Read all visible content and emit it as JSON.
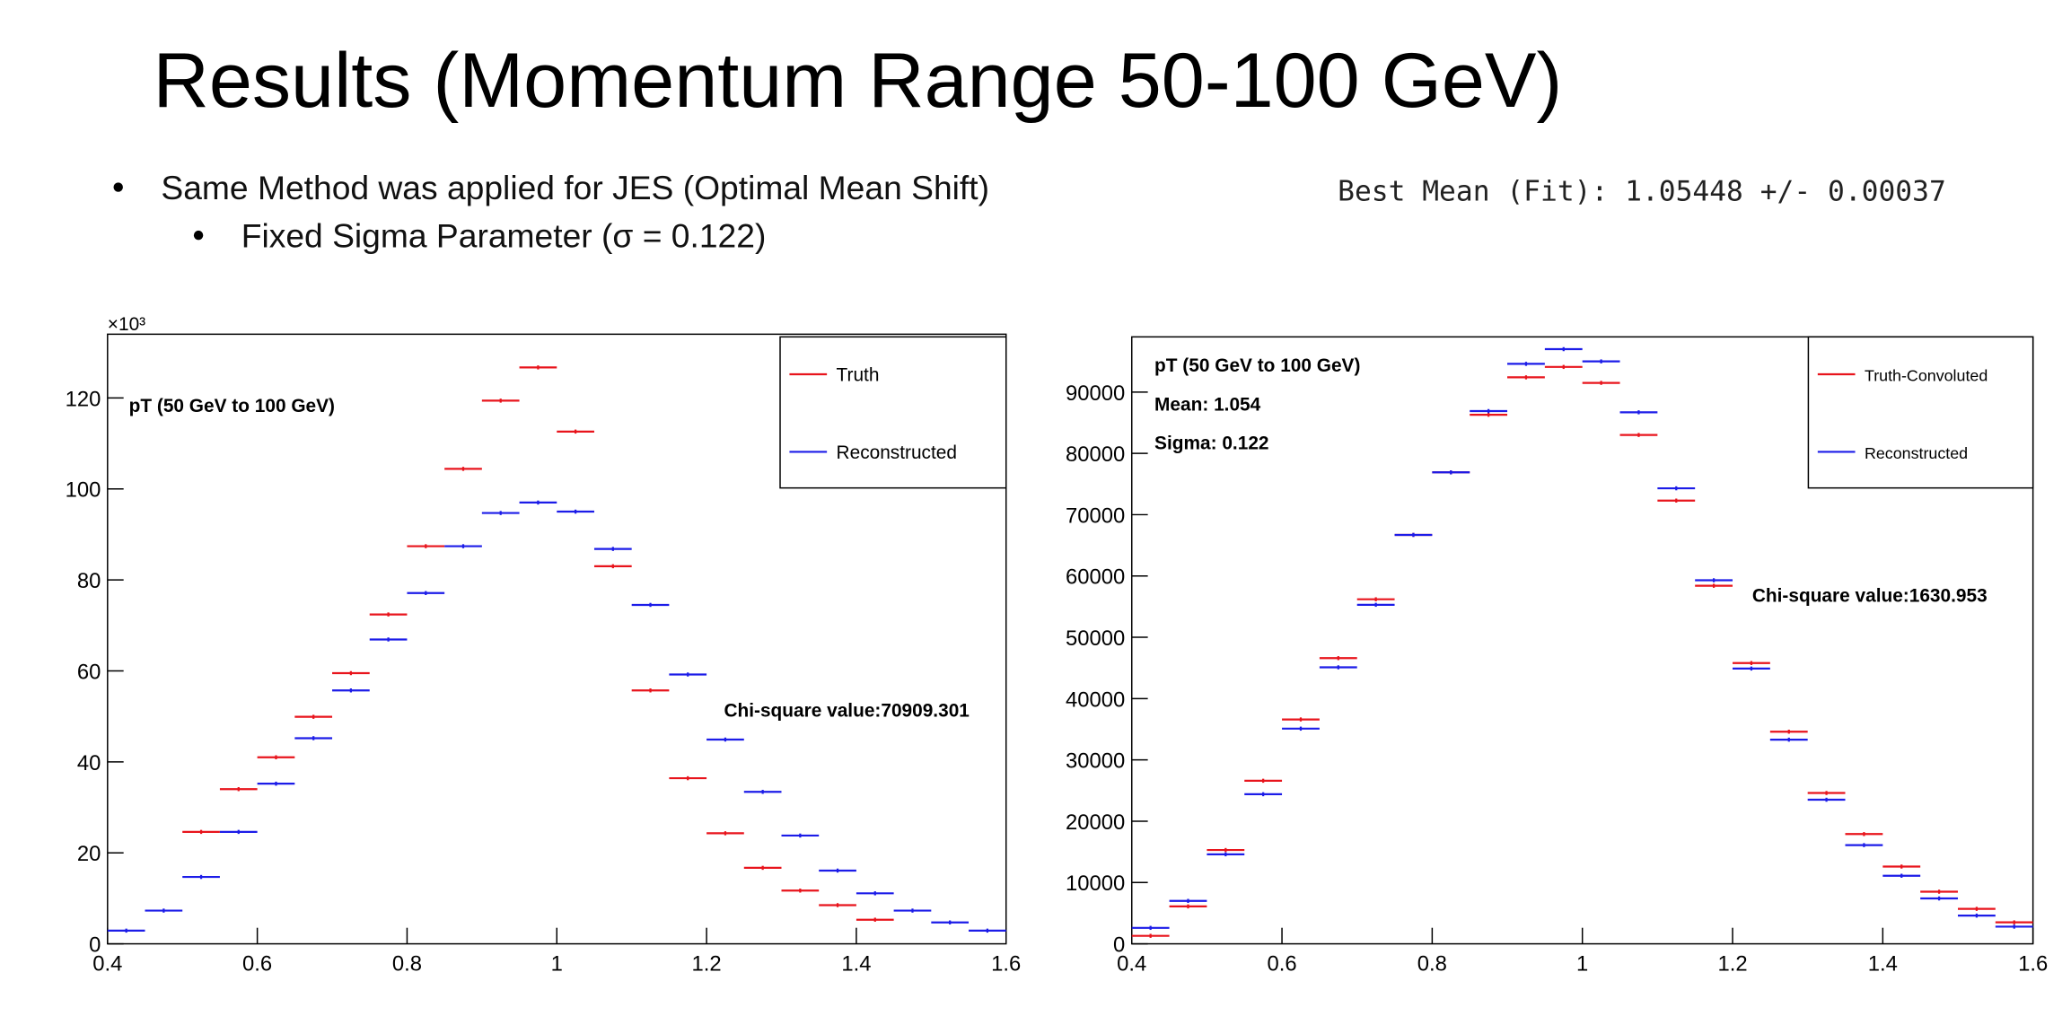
{
  "header": {
    "title": "Results (Momentum Range 50-100 GeV)"
  },
  "bullets": [
    "Same Method was applied for JES (Optimal Mean Shift)",
    "Fixed Sigma Parameter (σ = 0.122)"
  ],
  "fit_result": "Best Mean (Fit): 1.05448 +/- 0.00037",
  "chart_data": [
    {
      "type": "histogram",
      "bins": [
        0.4,
        0.45,
        0.5,
        0.55,
        0.6,
        0.65,
        0.7,
        0.75,
        0.8,
        0.85,
        0.9,
        0.95,
        1.0,
        1.05,
        1.1,
        1.15,
        1.2,
        1.25,
        1.3,
        1.35,
        1.4,
        1.45,
        1.5,
        1.55,
        1.6
      ],
      "series": [
        {
          "name": "Truth",
          "color": "#e8141c",
          "values": [
            null,
            null,
            24.6,
            34,
            41,
            49.9,
            59.5,
            72.4,
            87.4,
            104.4,
            119.4,
            126.7,
            112.6,
            83,
            55.7,
            36.4,
            24.3,
            16.7,
            11.7,
            8.5,
            5.3,
            null,
            null,
            null
          ]
        },
        {
          "name": "Reconstructed",
          "color": "#1c1ce8",
          "values": [
            2.9,
            7.3,
            14.7,
            24.6,
            35.2,
            45.2,
            55.7,
            66.9,
            77.1,
            87.4,
            94.7,
            97,
            95,
            86.8,
            74.5,
            59.2,
            44.9,
            33.4,
            23.8,
            16.1,
            11.1,
            7.3,
            4.7,
            2.9
          ]
        }
      ],
      "xlim": [
        0.4,
        1.6
      ],
      "xticks": [
        0.4,
        0.6,
        0.8,
        1,
        1.2,
        1.4,
        1.6
      ],
      "ylim": [
        0,
        134
      ],
      "yticks": [
        0,
        20,
        40,
        60,
        80,
        100,
        120
      ],
      "y_multiplier": "×10³",
      "annotations": [
        "pT (50 GeV to 100 GeV)"
      ],
      "chi_square": "Chi-square value:70909.301"
    },
    {
      "type": "histogram",
      "bins": [
        0.4,
        0.45,
        0.5,
        0.55,
        0.6,
        0.65,
        0.7,
        0.75,
        0.8,
        0.85,
        0.9,
        0.95,
        1.0,
        1.05,
        1.1,
        1.15,
        1.2,
        1.25,
        1.3,
        1.35,
        1.4,
        1.45,
        1.5,
        1.55,
        1.6
      ],
      "series": [
        {
          "name": "Truth-Convoluted",
          "color": "#e8141c",
          "values": [
            1300,
            6100,
            15300,
            26600,
            36600,
            46600,
            56200,
            66700,
            76900,
            86300,
            92400,
            94100,
            91500,
            83000,
            72300,
            58400,
            45800,
            34600,
            24600,
            17900,
            12600,
            8500,
            5700,
            3500
          ]
        },
        {
          "name": "Reconstructed",
          "color": "#1c1ce8",
          "values": [
            2600,
            7000,
            14600,
            24400,
            35100,
            45100,
            55300,
            66700,
            76900,
            86900,
            94600,
            97000,
            95000,
            86700,
            74300,
            59300,
            44900,
            33300,
            23500,
            16100,
            11100,
            7400,
            4600,
            2800
          ]
        }
      ],
      "xlim": [
        0.4,
        1.6
      ],
      "xticks": [
        0.4,
        0.6,
        0.8,
        1,
        1.2,
        1.4,
        1.6
      ],
      "ylim": [
        0,
        99000
      ],
      "yticks": [
        0,
        10000,
        20000,
        30000,
        40000,
        50000,
        60000,
        70000,
        80000,
        90000
      ],
      "annotations": [
        "pT (50 GeV to 100 GeV)",
        "Mean: 1.054",
        "Sigma: 0.122"
      ],
      "chi_square": "Chi-square value:1630.953"
    }
  ]
}
